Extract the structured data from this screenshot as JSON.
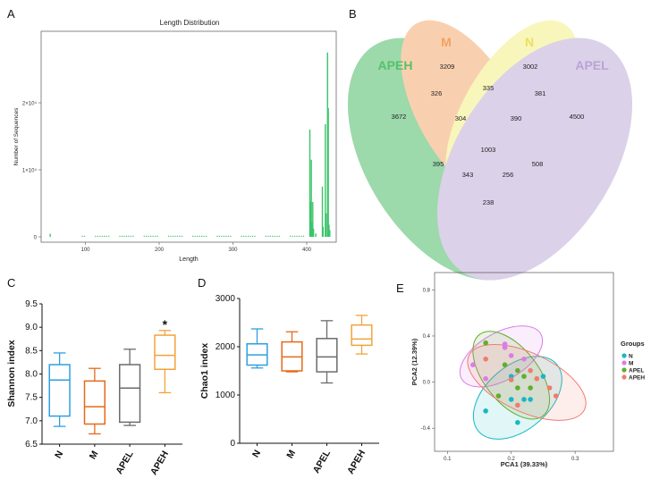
{
  "panels": {
    "A": {
      "letter": "A"
    },
    "B": {
      "letter": "B"
    },
    "C": {
      "letter": "C"
    },
    "D": {
      "letter": "D"
    },
    "E": {
      "letter": "E"
    }
  },
  "chart_data": [
    {
      "id": "A",
      "type": "bar",
      "title": "Length Distribution",
      "xlabel": "Length",
      "ylabel": "Number of Sequences",
      "xlim": [
        40,
        440
      ],
      "ylim": [
        0,
        30000
      ],
      "xticks": [
        100,
        200,
        300,
        400
      ],
      "yticks": [
        0,
        10000,
        20000
      ],
      "ytick_labels": [
        "0",
        "1×10⁴",
        "2×10⁴"
      ],
      "color": "#3cc46a",
      "bars": [
        {
          "x": 52,
          "y": 450
        },
        {
          "x": 404,
          "y": 16000
        },
        {
          "x": 405,
          "y": 5200
        },
        {
          "x": 406,
          "y": 11500
        },
        {
          "x": 407,
          "y": 2200
        },
        {
          "x": 408,
          "y": 5200
        },
        {
          "x": 409,
          "y": 1200
        },
        {
          "x": 412,
          "y": 500
        },
        {
          "x": 421,
          "y": 7500
        },
        {
          "x": 422,
          "y": 1500
        },
        {
          "x": 425,
          "y": 16800
        },
        {
          "x": 426,
          "y": 3500
        },
        {
          "x": 428,
          "y": 27500
        },
        {
          "x": 429,
          "y": 19200
        },
        {
          "x": 430,
          "y": 1800
        },
        {
          "x": 431,
          "y": 1000
        }
      ],
      "noise_range": [
        95,
        400
      ]
    },
    {
      "id": "B",
      "type": "venn",
      "sets": [
        {
          "name": "APEH",
          "color": "#3cb55a"
        },
        {
          "name": "M",
          "color": "#f4a261"
        },
        {
          "name": "N",
          "color": "#f2ee7a"
        },
        {
          "name": "APEL",
          "color": "#b9a4d4"
        }
      ],
      "regions": [
        {
          "sets": [
            "APEH"
          ],
          "value": 3672
        },
        {
          "sets": [
            "M"
          ],
          "value": 3209
        },
        {
          "sets": [
            "N"
          ],
          "value": 3002
        },
        {
          "sets": [
            "APEL"
          ],
          "value": 4500
        },
        {
          "sets": [
            "APEH",
            "M"
          ],
          "value": 326
        },
        {
          "sets": [
            "M",
            "N"
          ],
          "value": 335
        },
        {
          "sets": [
            "N",
            "APEL"
          ],
          "value": 381
        },
        {
          "sets": [
            "APEH",
            "M",
            "N"
          ],
          "value": 304
        },
        {
          "sets": [
            "M",
            "N",
            "APEL"
          ],
          "value": 390
        },
        {
          "sets": [
            "APEH",
            "M",
            "N",
            "APEL"
          ],
          "value": 1003
        },
        {
          "sets": [
            "APEH",
            "N"
          ],
          "value": 395
        },
        {
          "sets": [
            "APEH",
            "N",
            "APEL"
          ],
          "value": 343
        },
        {
          "sets": [
            "APEH",
            "M",
            "APEL"
          ],
          "value": 256
        },
        {
          "sets": [
            "M",
            "APEL"
          ],
          "value": 508
        },
        {
          "sets": [
            "APEH",
            "APEL"
          ],
          "value": 238
        }
      ]
    },
    {
      "id": "C",
      "type": "box",
      "ylabel": "Shannon index",
      "ylim": [
        6.5,
        9.5
      ],
      "yticks": [
        "6.5",
        "7.0",
        "7.5",
        "8.0",
        "8.5",
        "9.0",
        "9.5"
      ],
      "categories": [
        "N",
        "M",
        "APEL",
        "APEH"
      ],
      "colors": [
        "#2f9fe0",
        "#e46a1a",
        "#6b6b6b",
        "#f2a33a"
      ],
      "boxes": [
        {
          "min": 6.88,
          "q1": 7.1,
          "median": 7.87,
          "q3": 8.2,
          "max": 8.45
        },
        {
          "min": 6.72,
          "q1": 6.93,
          "median": 7.3,
          "q3": 7.85,
          "max": 8.12
        },
        {
          "min": 6.9,
          "q1": 6.97,
          "median": 7.7,
          "q3": 8.2,
          "max": 8.53
        },
        {
          "min": 7.6,
          "q1": 8.1,
          "median": 8.4,
          "q3": 8.83,
          "max": 8.93
        }
      ],
      "annotations": [
        {
          "category": "APEH",
          "text": "*"
        }
      ]
    },
    {
      "id": "D",
      "type": "box",
      "ylabel": "Chao1 index",
      "ylim": [
        0,
        3000
      ],
      "yticks": [
        "0",
        "1000",
        "2000",
        "3000"
      ],
      "categories": [
        "N",
        "M",
        "APEL",
        "APEH"
      ],
      "colors": [
        "#2f9fe0",
        "#e46a1a",
        "#6b6b6b",
        "#f2a33a"
      ],
      "boxes": [
        {
          "min": 1560,
          "q1": 1620,
          "median": 1830,
          "q3": 2060,
          "max": 2370
        },
        {
          "min": 1480,
          "q1": 1500,
          "median": 1790,
          "q3": 2100,
          "max": 2310
        },
        {
          "min": 1250,
          "q1": 1480,
          "median": 1790,
          "q3": 2170,
          "max": 2540
        },
        {
          "min": 1850,
          "q1": 2030,
          "median": 2160,
          "q3": 2450,
          "max": 2650
        }
      ]
    },
    {
      "id": "E",
      "type": "scatter",
      "xlabel": "PCA1 (39.33%)",
      "ylabel": "PCA2 (12.39%)",
      "xlim": [
        0.08,
        0.36
      ],
      "ylim": [
        -0.6,
        0.95
      ],
      "xticks": [
        "0.1",
        "0.2",
        "0.3"
      ],
      "yticks": [
        "-0.4",
        "0.0",
        "0.4",
        "0.8"
      ],
      "legend_title": "Groups",
      "series": [
        {
          "name": "N",
          "color": "#17b8c4",
          "points": [
            [
              0.16,
              -0.25
            ],
            [
              0.2,
              0.05
            ],
            [
              0.22,
              -0.15
            ],
            [
              0.23,
              -0.15
            ],
            [
              0.25,
              0.05
            ],
            [
              0.21,
              -0.35
            ],
            [
              0.2,
              -0.15
            ]
          ]
        },
        {
          "name": "M",
          "color": "#d97de8",
          "points": [
            [
              0.14,
              0.15
            ],
            [
              0.19,
              0.33
            ],
            [
              0.19,
              0.32
            ],
            [
              0.19,
              0.3
            ],
            [
              0.2,
              0.23
            ],
            [
              0.16,
              0.03
            ],
            [
              0.22,
              0.2
            ]
          ]
        },
        {
          "name": "APEL",
          "color": "#63ad2c",
          "points": [
            [
              0.16,
              0.34
            ],
            [
              0.19,
              0.15
            ],
            [
              0.21,
              0.1
            ],
            [
              0.22,
              0.05
            ],
            [
              0.23,
              -0.05
            ],
            [
              0.18,
              -0.12
            ],
            [
              0.21,
              -0.05
            ]
          ]
        },
        {
          "name": "APEH",
          "color": "#f07c6e",
          "points": [
            [
              0.16,
              0.2
            ],
            [
              0.2,
              0.02
            ],
            [
              0.23,
              0.1
            ],
            [
              0.26,
              -0.05
            ],
            [
              0.27,
              -0.12
            ],
            [
              0.21,
              -0.2
            ],
            [
              0.24,
              0.03
            ]
          ]
        }
      ]
    }
  ]
}
